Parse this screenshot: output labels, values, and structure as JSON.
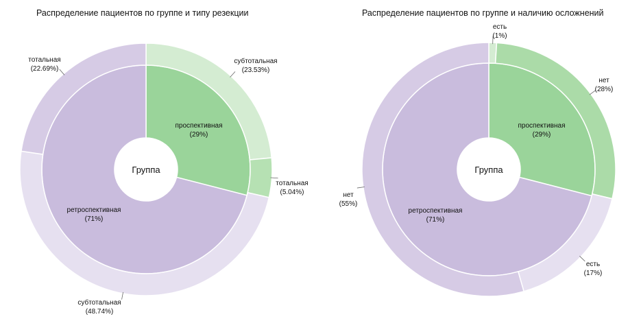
{
  "chart_data": [
    {
      "type": "sunburst",
      "title": "Распределение пациентов по группе и типу резекции",
      "center_label": "Группа",
      "inner": [
        {
          "name": "проспективная",
          "pct_label": "(29%)",
          "value": 29,
          "color": "#9ad49a"
        },
        {
          "name": "ретроспективная",
          "pct_label": "(71%)",
          "value": 71,
          "color": "#c9bcdd"
        }
      ],
      "outer": [
        {
          "name": "субтотальная",
          "pct_label": "(23.53%)",
          "value": 23.53,
          "color": "#d4ecd2"
        },
        {
          "name": "тотальная",
          "pct_label": "(5.04%)",
          "value": 5.04,
          "color": "#b6e1b3"
        },
        {
          "name": "субтотальная",
          "pct_label": "(48.74%)",
          "value": 48.74,
          "color": "#e6e0f0"
        },
        {
          "name": "тотальная",
          "pct_label": "(22.69%)",
          "value": 22.69,
          "color": "#d6cbe5"
        }
      ]
    },
    {
      "type": "sunburst",
      "title": "Распределение пациентов по группе и наличию осложнений",
      "center_label": "Группа",
      "inner": [
        {
          "name": "проспективная",
          "pct_label": "(29%)",
          "value": 29,
          "color": "#9ad49a"
        },
        {
          "name": "ретроспективная",
          "pct_label": "(71%)",
          "value": 71,
          "color": "#c9bcdd"
        }
      ],
      "outer": [
        {
          "name": "есть",
          "pct_label": "(1%)",
          "value": 1,
          "color": "#d4ecd2"
        },
        {
          "name": "нет",
          "pct_label": "(28%)",
          "value": 28,
          "color": "#abdba8"
        },
        {
          "name": "есть",
          "pct_label": "(17%)",
          "value": 17,
          "color": "#e6e0f0"
        },
        {
          "name": "нет",
          "pct_label": "(55%)",
          "value": 55,
          "color": "#d6cbe5"
        }
      ]
    }
  ]
}
